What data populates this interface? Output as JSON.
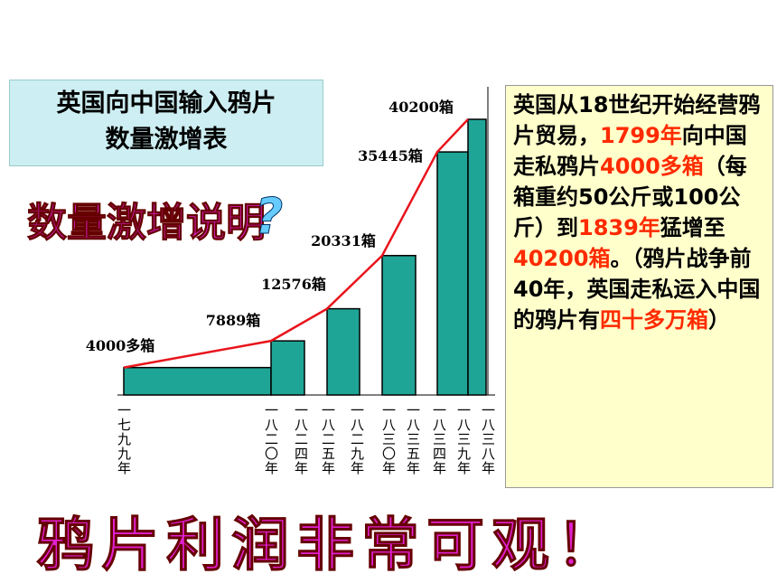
{
  "header": {
    "title_lines": [
      "英国向中国输入鸦片",
      "数量激增表"
    ],
    "question": "数量激增说明",
    "question_mark": "?"
  },
  "chart_data": {
    "type": "bar",
    "categories": [
      "一七九九年",
      "一八二〇年",
      "一八二四年",
      "一八二五年",
      "一八二九年",
      "一八三〇年",
      "一八三五年",
      "一八三四年",
      "一八三九年",
      "一八三八年"
    ],
    "values": [
      4000,
      7889,
      null,
      12576,
      null,
      20331,
      null,
      35445,
      40200,
      null
    ],
    "value_labels": [
      "4000多箱",
      "7889箱",
      null,
      "12576箱",
      null,
      "20331箱",
      null,
      "35445箱",
      "40200箱",
      null
    ],
    "color": "#1fa596",
    "line_color": "#e8141c",
    "ylim": [
      0,
      40200
    ]
  },
  "note": [
    {
      "text": "英国从18世纪开始经营鸦片贸易，",
      "red": false
    },
    {
      "text": "1799年",
      "red": true
    },
    {
      "text": "向中国走私鸦片",
      "red": false
    },
    {
      "text": "4000多箱",
      "red": true
    },
    {
      "text": "（每箱重约50公斤或100公斤）到",
      "red": false
    },
    {
      "text": "1839年",
      "red": true
    },
    {
      "text": "猛增至",
      "red": false
    },
    {
      "text": "40200箱",
      "red": true
    },
    {
      "text": "。（鸦片战争前40年，英国走私运入中国的鸦片有",
      "red": false
    },
    {
      "text": "四十多万箱",
      "red": true
    },
    {
      "text": "）",
      "red": false
    }
  ],
  "footer": "鸦片利润非常可观！"
}
